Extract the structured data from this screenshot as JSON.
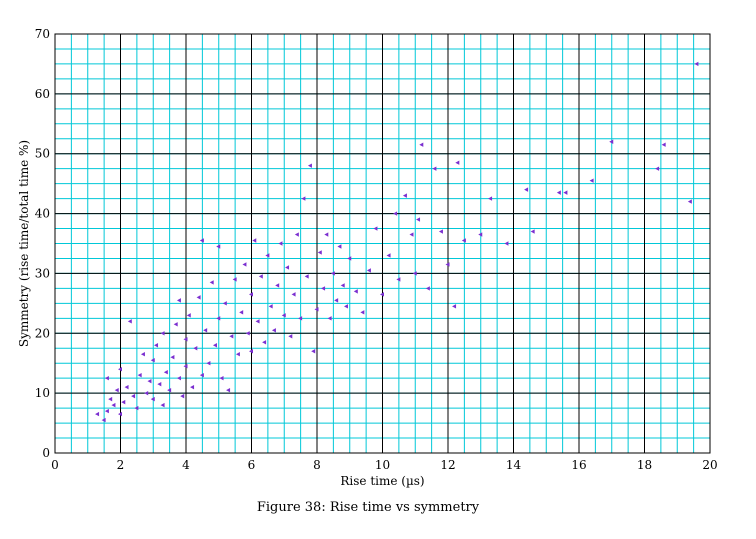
{
  "caption": "Figure 38: Rise time vs symmetry",
  "colors": {
    "minor_grid": "#00c8d8",
    "major_grid": "#000000",
    "marker": "#7b2fd0",
    "background": "#ffffff"
  },
  "chart_data": {
    "type": "scatter",
    "title": "",
    "xlabel": "Rise time (µs)",
    "ylabel": "Symmetry (rise time/total time %)",
    "xlim": [
      0,
      20
    ],
    "ylim": [
      0,
      70
    ],
    "x_major_ticks": [
      0,
      2,
      4,
      6,
      8,
      10,
      12,
      14,
      16,
      18,
      20
    ],
    "y_major_ticks": [
      0,
      10,
      20,
      30,
      40,
      50,
      60,
      70
    ],
    "x_minor_step": 0.5,
    "y_minor_step": 2.5,
    "grid": true,
    "marker": "left-pointing triangle",
    "series": [
      {
        "points": [
          [
            1.3,
            6.5
          ],
          [
            1.5,
            5.5
          ],
          [
            1.6,
            7.0
          ],
          [
            1.6,
            12.5
          ],
          [
            1.7,
            9.0
          ],
          [
            1.8,
            8.0
          ],
          [
            1.9,
            10.5
          ],
          [
            2.0,
            6.5
          ],
          [
            2.0,
            14.0
          ],
          [
            2.1,
            8.5
          ],
          [
            2.2,
            11.0
          ],
          [
            2.3,
            22.0
          ],
          [
            2.4,
            9.5
          ],
          [
            2.5,
            7.5
          ],
          [
            2.6,
            13.0
          ],
          [
            2.7,
            16.5
          ],
          [
            2.8,
            10.0
          ],
          [
            2.9,
            12.0
          ],
          [
            3.0,
            9.0
          ],
          [
            3.0,
            15.5
          ],
          [
            3.1,
            18.0
          ],
          [
            3.2,
            11.5
          ],
          [
            3.3,
            8.0
          ],
          [
            3.3,
            20.0
          ],
          [
            3.4,
            13.5
          ],
          [
            3.5,
            10.5
          ],
          [
            3.6,
            16.0
          ],
          [
            3.7,
            21.5
          ],
          [
            3.8,
            12.5
          ],
          [
            3.8,
            25.5
          ],
          [
            3.9,
            9.5
          ],
          [
            4.0,
            14.5
          ],
          [
            4.0,
            19.0
          ],
          [
            4.1,
            23.0
          ],
          [
            4.2,
            11.0
          ],
          [
            4.3,
            17.5
          ],
          [
            4.4,
            26.0
          ],
          [
            4.5,
            13.0
          ],
          [
            4.5,
            35.5
          ],
          [
            4.6,
            20.5
          ],
          [
            4.7,
            15.0
          ],
          [
            4.8,
            28.5
          ],
          [
            4.9,
            18.0
          ],
          [
            5.0,
            22.5
          ],
          [
            5.0,
            34.5
          ],
          [
            5.1,
            12.5
          ],
          [
            5.2,
            25.0
          ],
          [
            5.3,
            10.5
          ],
          [
            5.4,
            19.5
          ],
          [
            5.5,
            29.0
          ],
          [
            5.6,
            16.5
          ],
          [
            5.7,
            23.5
          ],
          [
            5.8,
            31.5
          ],
          [
            5.9,
            20.0
          ],
          [
            6.0,
            26.5
          ],
          [
            6.0,
            17.0
          ],
          [
            6.1,
            35.5
          ],
          [
            6.2,
            22.0
          ],
          [
            6.3,
            29.5
          ],
          [
            6.4,
            18.5
          ],
          [
            6.5,
            33.0
          ],
          [
            6.6,
            24.5
          ],
          [
            6.7,
            20.5
          ],
          [
            6.8,
            28.0
          ],
          [
            6.9,
            35.0
          ],
          [
            7.0,
            23.0
          ],
          [
            7.1,
            31.0
          ],
          [
            7.2,
            19.5
          ],
          [
            7.3,
            26.5
          ],
          [
            7.4,
            36.5
          ],
          [
            7.5,
            22.5
          ],
          [
            7.6,
            42.5
          ],
          [
            7.7,
            29.5
          ],
          [
            7.8,
            48.0
          ],
          [
            7.9,
            17.0
          ],
          [
            8.0,
            24.0
          ],
          [
            8.1,
            33.5
          ],
          [
            8.2,
            27.5
          ],
          [
            8.3,
            36.5
          ],
          [
            8.4,
            22.5
          ],
          [
            8.5,
            30.0
          ],
          [
            8.6,
            25.5
          ],
          [
            8.7,
            34.5
          ],
          [
            8.8,
            28.0
          ],
          [
            8.9,
            24.5
          ],
          [
            9.0,
            32.5
          ],
          [
            9.2,
            27.0
          ],
          [
            9.4,
            23.5
          ],
          [
            9.6,
            30.5
          ],
          [
            9.8,
            37.5
          ],
          [
            10.0,
            26.5
          ],
          [
            10.2,
            33.0
          ],
          [
            10.4,
            40.0
          ],
          [
            10.5,
            29.0
          ],
          [
            10.7,
            43.0
          ],
          [
            10.9,
            36.5
          ],
          [
            11.0,
            30.0
          ],
          [
            11.1,
            39.0
          ],
          [
            11.2,
            51.5
          ],
          [
            11.4,
            27.5
          ],
          [
            11.6,
            47.5
          ],
          [
            11.8,
            37.0
          ],
          [
            12.0,
            31.5
          ],
          [
            12.2,
            24.5
          ],
          [
            12.3,
            48.5
          ],
          [
            12.5,
            35.5
          ],
          [
            13.0,
            36.5
          ],
          [
            13.3,
            42.5
          ],
          [
            13.8,
            35.0
          ],
          [
            14.4,
            44.0
          ],
          [
            14.6,
            37.0
          ],
          [
            15.4,
            43.5
          ],
          [
            15.6,
            43.5
          ],
          [
            16.4,
            45.5
          ],
          [
            17.0,
            52.0
          ],
          [
            18.4,
            47.5
          ],
          [
            18.6,
            51.5
          ],
          [
            19.4,
            42.0
          ],
          [
            19.6,
            65.0
          ]
        ]
      }
    ]
  }
}
